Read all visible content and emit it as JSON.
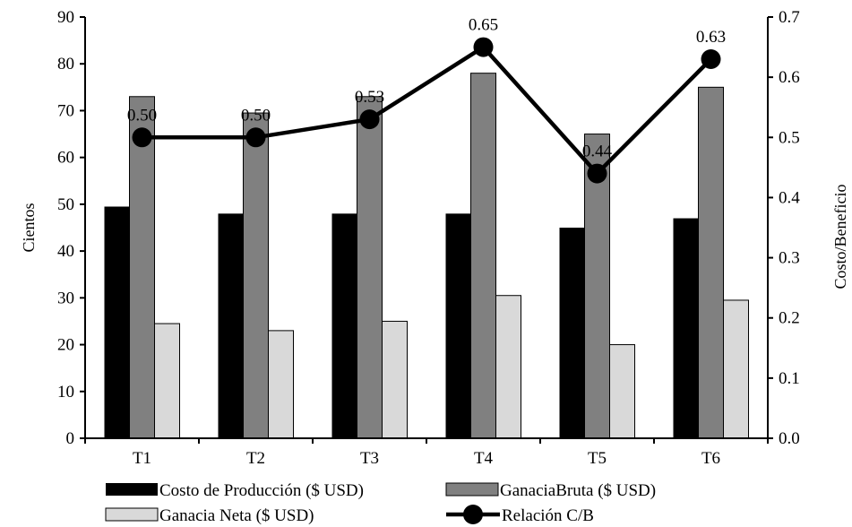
{
  "chart_data": {
    "type": "bar",
    "categories": [
      "T1",
      "T2",
      "T3",
      "T4",
      "T5",
      "T6"
    ],
    "series": [
      {
        "name": "Costo de Producción ($ USD)",
        "values": [
          49.5,
          48,
          48,
          48,
          45,
          47
        ],
        "color": "#000000",
        "axis": "left"
      },
      {
        "name": "GanaciaBruta ($ USD)",
        "values": [
          73,
          69.5,
          73,
          78,
          65,
          75
        ],
        "color": "#808080",
        "axis": "left"
      },
      {
        "name": "Ganacia Neta ($ USD)",
        "values": [
          24.5,
          23,
          25,
          30.5,
          20,
          29.5
        ],
        "color": "#d9d9d9",
        "axis": "left"
      }
    ],
    "line_series": {
      "name": "Relación C/B",
      "values": [
        0.5,
        0.5,
        0.53,
        0.65,
        0.44,
        0.63
      ],
      "labels": [
        "0.50",
        "0.50",
        "0.53",
        "0.65",
        "0.44",
        "0.63"
      ],
      "color": "#000000",
      "axis": "right"
    },
    "ylabel": "Cientos",
    "y2label": "Costo/Beneficio",
    "ylim": [
      0,
      90
    ],
    "y2lim": [
      0,
      0.7
    ],
    "yticks": [
      "0",
      "10",
      "20",
      "30",
      "40",
      "50",
      "60",
      "70",
      "80",
      "90"
    ],
    "y2ticks": [
      "0.0",
      "0.1",
      "0.2",
      "0.3",
      "0.4",
      "0.5",
      "0.6",
      "0.7"
    ],
    "legend_position": "bottom",
    "grid": false
  }
}
